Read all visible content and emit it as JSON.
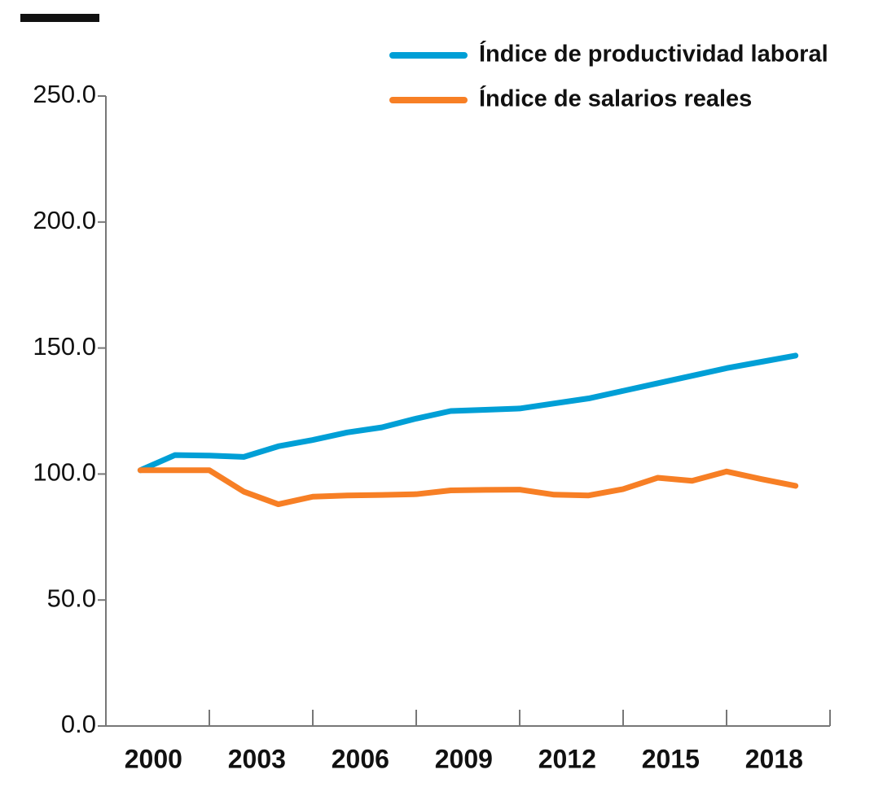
{
  "chart_data": {
    "type": "line",
    "x": [
      2000,
      2001,
      2002,
      2003,
      2004,
      2005,
      2006,
      2007,
      2008,
      2009,
      2010,
      2011,
      2012,
      2013,
      2014,
      2015,
      2016,
      2017,
      2018,
      2019
    ],
    "series": [
      {
        "name": "Índice de productividad laboral",
        "color": "#009fd6",
        "values": [
          101.5,
          107.5,
          107.3,
          106.8,
          111,
          113.5,
          116.5,
          118.5,
          122,
          125,
          125.5,
          126,
          128,
          130,
          133,
          136,
          139,
          142,
          144.5,
          147
        ]
      },
      {
        "name": "Índice de salarios reales",
        "color": "#f77f25",
        "values": [
          101.5,
          101.5,
          101.5,
          93,
          88,
          91,
          91.5,
          91.7,
          92,
          93.5,
          93.7,
          93.8,
          91.8,
          91.5,
          94,
          98.5,
          97.3,
          101,
          98,
          95.3
        ]
      }
    ],
    "xlim": [
      1999,
      2020
    ],
    "xticks": [
      2000,
      2003,
      2006,
      2009,
      2012,
      2015,
      2018
    ],
    "xminorticks": [
      2002,
      2005,
      2008,
      2011,
      2014,
      2017,
      2020
    ],
    "ylim": [
      0,
      250
    ],
    "yticks": [
      {
        "value": 0,
        "label": "0.0"
      },
      {
        "value": 50,
        "label": "50.0"
      },
      {
        "value": 100,
        "label": "100.0"
      },
      {
        "value": 150,
        "label": "150.0"
      },
      {
        "value": 200,
        "label": "200.0"
      },
      {
        "value": 250,
        "label": "250.0"
      }
    ],
    "legend": "top-right"
  }
}
